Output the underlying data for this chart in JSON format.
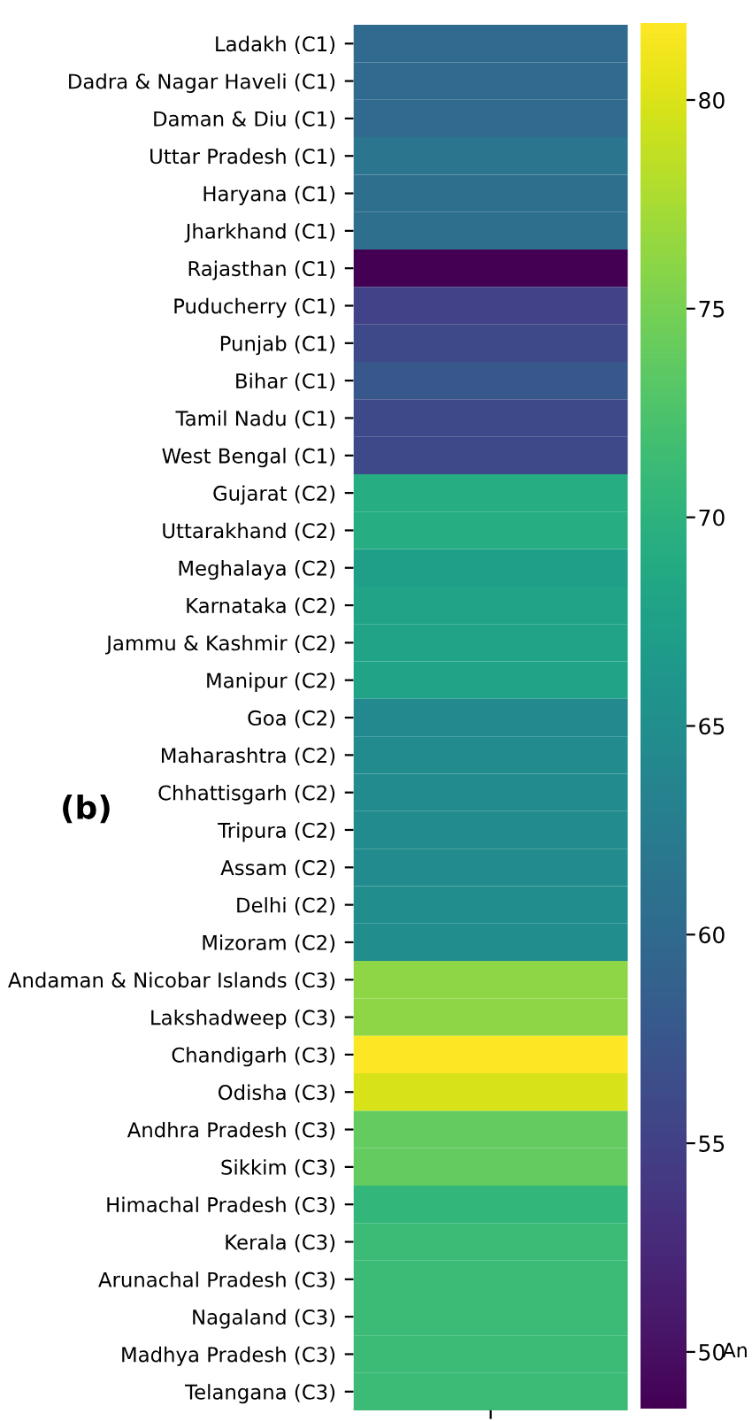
{
  "chart_data": {
    "type": "heatmap",
    "categories": [
      null
    ],
    "y_categories": [
      "Ladakh (C1)",
      "Dadra & Nagar Haveli (C1)",
      "Daman & Diu (C1)",
      "Uttar Pradesh (C1)",
      "Haryana (C1)",
      "Jharkhand (C1)",
      "Rajasthan (C1)",
      "Puducherry (C1)",
      "Punjab (C1)",
      "Bihar (C1)",
      "Tamil Nadu (C1)",
      "West Bengal (C1)",
      "Gujarat (C2)",
      "Uttarakhand (C2)",
      "Meghalaya (C2)",
      "Karnataka (C2)",
      "Jammu & Kashmir (C2)",
      "Manipur (C2)",
      "Goa (C2)",
      "Maharashtra (C2)",
      "Chhattisgarh (C2)",
      "Tripura (C2)",
      "Assam (C2)",
      "Delhi (C2)",
      "Mizoram (C2)",
      "Andaman & Nicobar Islands (C3)",
      "Lakshadweep (C3)",
      "Chandigarh (C3)",
      "Odisha (C3)",
      "Andhra Pradesh (C3)",
      "Sikkim (C3)",
      "Himachal Pradesh (C3)",
      "Kerala (C3)",
      "Arunachal Pradesh (C3)",
      "Nagaland (C3)",
      "Madhya Pradesh (C3)",
      "Telangana (C3)"
    ],
    "cells": [
      [
        59.9
      ],
      [
        59.9
      ],
      [
        59.9
      ],
      [
        61.5
      ],
      [
        60.6
      ],
      [
        60.6
      ],
      [
        48.6
      ],
      [
        55.2
      ],
      [
        55.9
      ],
      [
        57.6
      ],
      [
        55.9
      ],
      [
        55.9
      ],
      [
        69.2
      ],
      [
        69.2
      ],
      [
        67.2
      ],
      [
        67.9
      ],
      [
        67.9
      ],
      [
        67.9
      ],
      [
        64.2
      ],
      [
        64.5
      ],
      [
        64.5
      ],
      [
        64.5
      ],
      [
        64.5
      ],
      [
        64.9
      ],
      [
        64.9
      ],
      [
        76.2
      ],
      [
        76.2
      ],
      [
        81.8
      ],
      [
        79.8
      ],
      [
        73.8
      ],
      [
        73.8
      ],
      [
        70.5
      ],
      [
        71.2
      ],
      [
        71.2
      ],
      [
        71.2
      ],
      [
        71.2
      ],
      [
        71.2
      ]
    ],
    "clim": [
      48.6,
      81.8
    ],
    "cticks": [
      50,
      55,
      60,
      65,
      70,
      75,
      80
    ],
    "tick_labels": "y",
    "annotations": [
      "(b)",
      "An"
    ]
  }
}
